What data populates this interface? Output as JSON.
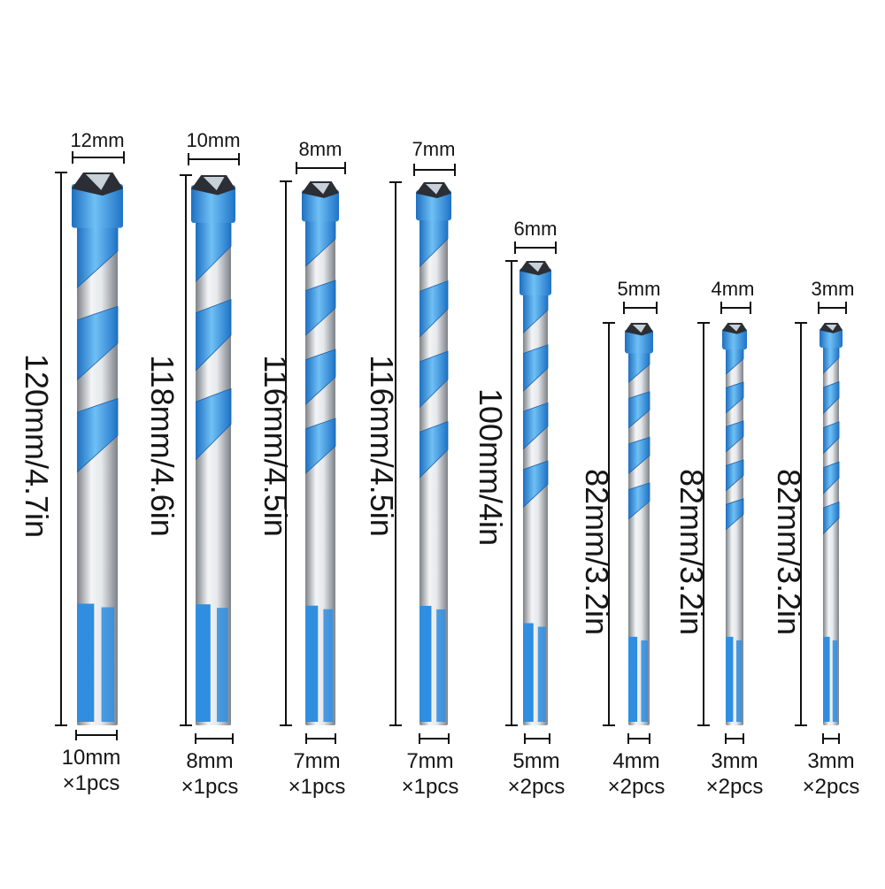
{
  "bits": [
    {
      "tip_label": "12mm",
      "length_label": "120mm/4.7in",
      "shank_label": "10mm",
      "qty_label": "×1pcs"
    },
    {
      "tip_label": "10mm",
      "length_label": "118mm/4.6in",
      "shank_label": "8mm",
      "qty_label": "×1pcs"
    },
    {
      "tip_label": "8mm",
      "length_label": "116mm/4.5in",
      "shank_label": "7mm",
      "qty_label": "×1pcs"
    },
    {
      "tip_label": "7mm",
      "length_label": "116mm/4.5in",
      "shank_label": "7mm",
      "qty_label": "×1pcs"
    },
    {
      "tip_label": "6mm",
      "length_label": "100mm/4in",
      "shank_label": "5mm",
      "qty_label": "×2pcs"
    },
    {
      "tip_label": "5mm",
      "length_label": "82mm/3.2in",
      "shank_label": "4mm",
      "qty_label": "×2pcs"
    },
    {
      "tip_label": "4mm",
      "length_label": "82mm/3.2in",
      "shank_label": "3mm",
      "qty_label": "×2pcs"
    },
    {
      "tip_label": "3mm",
      "length_label": "82mm/3.2in",
      "shank_label": "3mm",
      "qty_label": "×2pcs"
    }
  ],
  "colors": {
    "blue": "#2f8ee0",
    "blue_light": "#6fc0f5",
    "steel_dark": "#7d8288",
    "steel_light": "#f2f4f6",
    "line": "#111111"
  }
}
